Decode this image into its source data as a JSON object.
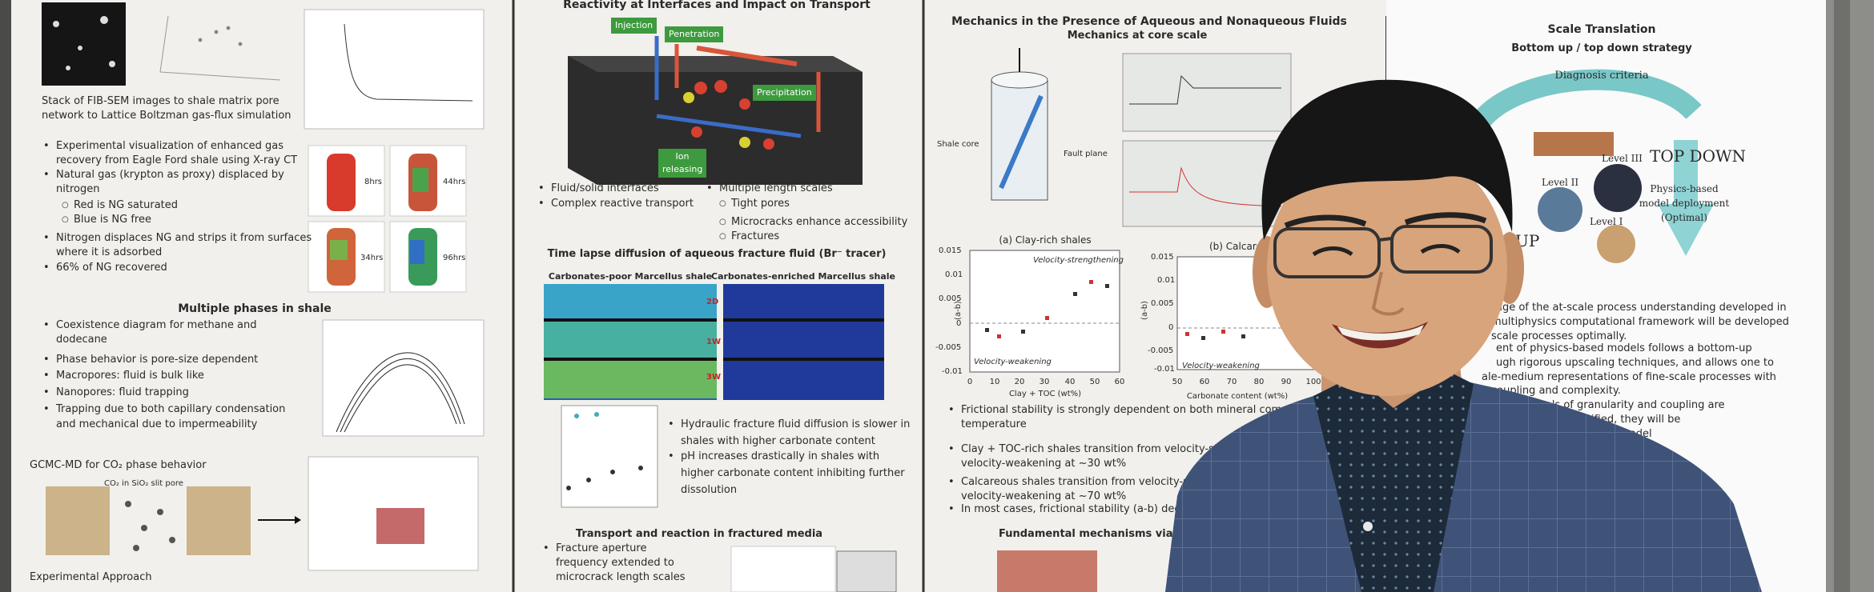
{
  "col1": {
    "caption": [
      "Stack of FIB-SEM images to shale matrix pore",
      "network to Lattice Boltzman gas-flux simulation"
    ],
    "gas_bullets": [
      "Experimental visualization of enhanced gas",
      "recovery from Eagle Ford shale using X-ray CT",
      "Natural gas (krypton as proxy) displaced by",
      "nitrogen",
      "Red is NG saturated",
      "Blue is NG free",
      "Nitrogen displaces NG and strips it from surfaces",
      "where it is adsorbed",
      "66% of NG recovered"
    ],
    "ct_times": [
      "8hrs",
      "44hrs",
      "34hrs",
      "96hrs"
    ],
    "phase_heading": "Multiple phases in shale",
    "phase_bullets": [
      "Coexistence diagram for methane and",
      "dodecane",
      "Phase behavior is pore-size dependent",
      "Macropores: fluid is bulk like",
      "Nanopores: fluid trapping",
      "Trapping due to both capillary condensation",
      "and mechanical due to impermeability"
    ],
    "gcmc_heading": "GCMC-MD for CO₂ phase behavior",
    "gcmc_label": "CO₂ in SiO₂ slit pore",
    "footer": "Experimental Approach"
  },
  "col2": {
    "title": "Reactivity at Interfaces and Impact on Transport",
    "labels": [
      "Injection",
      "Penetration",
      "Precipitation",
      "Ion releasing"
    ],
    "left_bullets": [
      "Fluid/solid interfaces",
      "Complex reactive transport"
    ],
    "right_bullets": [
      "Multiple length scales",
      "Tight pores",
      "Microcracks enhance accessibility",
      "Fractures"
    ],
    "time_lapse_heading": "Time lapse diffusion of aqueous fracture fluid (Br⁻ tracer)",
    "panel_titles": [
      "Carbonates-poor Marcellus shale",
      "Carbonates-enriched Marcellus shale"
    ],
    "times": [
      "2D",
      "1W",
      "3W"
    ],
    "diffusion_bullets": [
      "Hydraulic fracture fluid diffusion is slower in",
      "shales with higher carbonate content",
      "pH increases drastically in shales with",
      "higher carbonate content inhibiting further",
      "dissolution"
    ],
    "transport_heading": "Transport and reaction in fractured media",
    "transport_bullets": [
      "Fracture aperture",
      "frequency extended to",
      "microcrack length scales"
    ]
  },
  "col3": {
    "title": "Mechanics in the Presence of Aqueous and Nonaqueous Fluids",
    "subtitle": "Mechanics at core scale",
    "core_labels": [
      "Shale core",
      "Fault plane"
    ],
    "panel_a": "(a) Clay-rich shales",
    "panel_b": "(b) Calcareous",
    "chart_a": {
      "y_label": "(a-b)",
      "yticks": [
        "0.015",
        "0.01",
        "0.005",
        "0",
        "-0.005",
        "-0.01"
      ],
      "xticks": [
        "0",
        "10",
        "20",
        "30",
        "40",
        "50",
        "60"
      ],
      "x_label": "Clay + TOC (wt%)",
      "strengthening": "Velocity-strengthening",
      "weakening": "Velocity-weakening"
    },
    "chart_b": {
      "y_label": "(a-b)",
      "yticks": [
        "0.015",
        "0.01",
        "0.005",
        "0",
        "-0.005",
        "-0.01"
      ],
      "xticks": [
        "50",
        "60",
        "70",
        "80",
        "90",
        "100"
      ],
      "x_label": "Carbonate content (wt%)",
      "weakening": "Velocity-weakening"
    },
    "bullets": [
      "Frictional stability is strongly dependent on both mineral composition and",
      "temperature",
      "Clay + TOC-rich shales transition from velocity-strengthening to",
      "velocity-weakening at ~30 wt%",
      "Calcareous shales transition from velocity-strengthening to",
      "velocity-weakening at ~70 wt%",
      "In most cases, frictional stability (a-b) decrea"
    ],
    "footer": "Fundamental mechanisms via Mole"
  },
  "col4": {
    "title": "Scale Translation",
    "subtitle": "Bottom up / top down strategy",
    "diagnosis": "Diagnosis criteria",
    "top_down": "TOP DOWN",
    "up": "UP",
    "levels": [
      "Level III",
      "Level II",
      "Level I"
    ],
    "deployment": [
      "Physics-based",
      "model deployment",
      "(Optimal)"
    ],
    "paragraph": [
      "age of the at-scale process understanding developed in",
      "multiphysics computational framework will be developed",
      "scale processes optimally.",
      "ent of physics-based models follows a bottom-up",
      "ugh rigorous upscaling techniques, and allows one to",
      "ale-medium representations of fine-scale processes with",
      "coupling and complexity.",
      "rent levels of granularity and coupling are",
      "onditions identified, they will be",
      "tional costs and model"
    ]
  }
}
